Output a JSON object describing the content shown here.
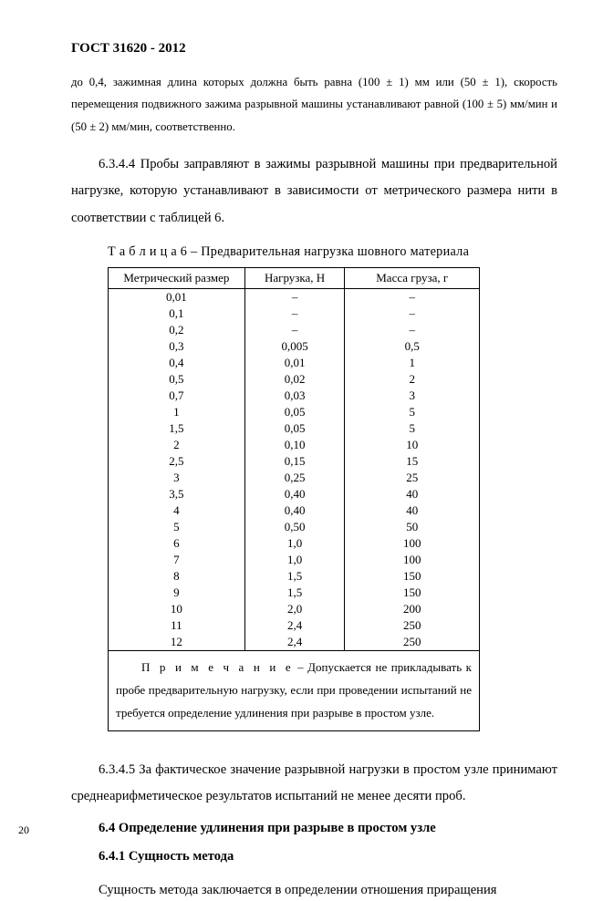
{
  "header": "ГОСТ 31620 - 2012",
  "para_small": "до 0,4, зажимная длина которых должна быть равна (100 ± 1) мм или  (50 ± 1), скорость перемещения подвижного зажима разрывной машины устанавливают равной (100 ± 5) мм/мин и (50 ± 2) мм/мин, соответственно.",
  "para_6344": "6.3.4.4  Пробы заправляют в зажимы разрывной машины при предварительной нагрузке, которую устанавливают в зависимости от метрического размера нити в соответствии с таблицей  6.",
  "table": {
    "caption_prefix": "Т а б л и ц а 6 –",
    "caption_rest": " Предварительная нагрузка шовного материала",
    "headers": [
      "Метрический размер",
      "Нагрузка, Н",
      "Масса груза, г"
    ],
    "col_widths": [
      "150px",
      "110px",
      "148px"
    ],
    "rows": [
      [
        "0,01",
        "–",
        "–"
      ],
      [
        "0,1",
        "–",
        "–"
      ],
      [
        "0,2",
        "–",
        "–"
      ],
      [
        "0,3",
        "0,005",
        "0,5"
      ],
      [
        "0,4",
        "0,01",
        "1"
      ],
      [
        "0,5",
        "0,02",
        "2"
      ],
      [
        "0,7",
        "0,03",
        "3"
      ],
      [
        "1",
        "0,05",
        "5"
      ],
      [
        "1,5",
        "0,05",
        "5"
      ],
      [
        "2",
        "0,10",
        "10"
      ],
      [
        "2,5",
        "0,15",
        "15"
      ],
      [
        "3",
        "0,25",
        "25"
      ],
      [
        "3,5",
        "0,40",
        "40"
      ],
      [
        "4",
        "0,40",
        "40"
      ],
      [
        "5",
        "0,50",
        "50"
      ],
      [
        "6",
        "1,0",
        "100"
      ],
      [
        "7",
        "1,0",
        "100"
      ],
      [
        "8",
        "1,5",
        "150"
      ],
      [
        "9",
        "1,5",
        "150"
      ],
      [
        "10",
        "2,0",
        "200"
      ],
      [
        "11",
        "2,4",
        "250"
      ],
      [
        "12",
        "2,4",
        "250"
      ]
    ],
    "note_label": "П р и м е ч а н и е",
    "note_rest": " – Допускается не прикладывать к пробе предварительную нагрузку, если при проведении испытаний не требуется определение удлинения при разрыве в простом узле."
  },
  "para_6345": "6.3.4.5 За фактическое значение разрывной нагрузки в простом узле принимают среднеарифметическое результатов испытаний не менее десяти проб.",
  "sec_64": "6.4 Определение удлинения при разрыве в простом узле",
  "sec_641": "6.4.1 Сущность метода",
  "para_641_body": "Сущность метода заключается в определении  отношения приращения",
  "pagenum": "20"
}
